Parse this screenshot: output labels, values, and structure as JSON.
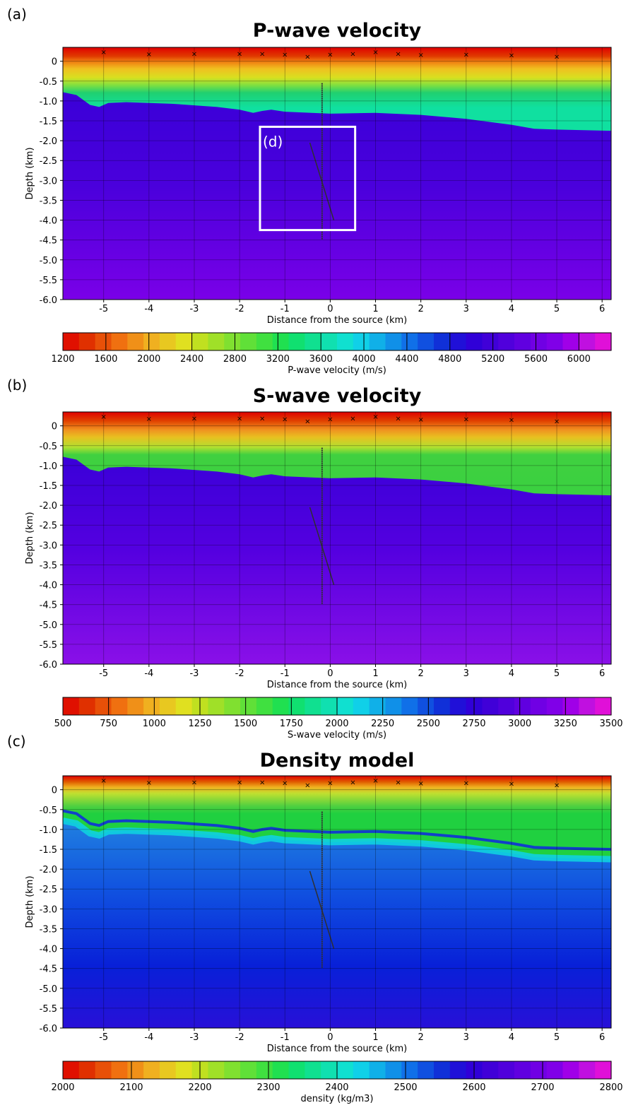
{
  "panels": [
    {
      "letter": "(a)",
      "title": "P-wave velocity",
      "box_label": "(d)",
      "ylabel": "Depth (km)",
      "xlabel": "Distance from the source (km)",
      "colorbar": {
        "label": "P-wave velocity (m/s)",
        "ticks": [
          "1200",
          "1600",
          "2000",
          "2400",
          "2800",
          "3200",
          "3600",
          "4000",
          "4400",
          "4800",
          "5200",
          "5600",
          "6000"
        ],
        "vmin": 1200,
        "vmax": 6300,
        "tick_start": 1200,
        "tick_step": 400
      }
    },
    {
      "letter": "(b)",
      "title": "S-wave velocity",
      "ylabel": "Depth (km)",
      "xlabel": "Distance from the source (km)",
      "colorbar": {
        "label": "S-wave velocity (m/s)",
        "ticks": [
          "500",
          "750",
          "1000",
          "1250",
          "1500",
          "1750",
          "2000",
          "2250",
          "2500",
          "2750",
          "3000",
          "3250",
          "3500"
        ],
        "vmin": 500,
        "vmax": 3500,
        "tick_start": 500,
        "tick_step": 250
      }
    },
    {
      "letter": "(c)",
      "title": "Density model",
      "ylabel": "Depth (km)",
      "xlabel": "Distance from the source (km)",
      "colorbar": {
        "label": "density (kg/m3)",
        "ticks": [
          "2000",
          "2100",
          "2200",
          "2300",
          "2400",
          "2500",
          "2600",
          "2700",
          "2800"
        ],
        "vmin": 2000,
        "vmax": 2800,
        "tick_start": 2000,
        "tick_step": 100
      }
    }
  ],
  "axes": {
    "x_ticks": [
      "-5",
      "-4",
      "-3",
      "-2",
      "-1",
      "0",
      "1",
      "2",
      "3",
      "4",
      "5",
      "6"
    ],
    "y_ticks": [
      "0",
      "-0.5",
      "-1.0",
      "-1.5",
      "-2.0",
      "-2.5",
      "-3.0",
      "-3.5",
      "-4.0",
      "-4.5",
      "-5.0",
      "-5.5",
      "-6.0"
    ]
  },
  "chart_data": [
    {
      "type": "heatmap",
      "title": "P-wave velocity",
      "xlabel": "Distance from the source (km)",
      "ylabel": "Depth (km)",
      "xlim": [
        -5.9,
        6.2
      ],
      "ylim": [
        -6.0,
        0.35
      ],
      "colorbar_label": "P-wave velocity (m/s)",
      "colorbar_range": [
        1200,
        6300
      ],
      "zoom_box": {
        "label": "(d)",
        "x": [
          -1.55,
          0.55
        ],
        "y": [
          -4.25,
          -1.65
        ]
      },
      "layer_interface_depth": {
        "x": [
          -5.9,
          -5.6,
          -5.3,
          -5.1,
          -4.9,
          -4.5,
          -3.5,
          -2.5,
          -2.0,
          -1.7,
          -1.5,
          -1.3,
          -1.0,
          0,
          1,
          2,
          3,
          4,
          4.5,
          5,
          6.2
        ],
        "y": [
          -0.78,
          -0.85,
          -1.1,
          -1.15,
          -1.05,
          -1.03,
          -1.07,
          -1.15,
          -1.22,
          -1.3,
          -1.25,
          -1.22,
          -1.27,
          -1.32,
          -1.3,
          -1.35,
          -1.45,
          -1.6,
          -1.7,
          -1.72,
          -1.75
        ]
      },
      "surface_stations_x": [
        -5,
        -4,
        -3,
        -2,
        -1.5,
        -1,
        -0.5,
        0,
        0.5,
        1,
        1.5,
        2,
        3,
        4,
        5
      ],
      "surface_stations_y": [
        0.24,
        0.19,
        0.2,
        0.2,
        0.2,
        0.18,
        0.13,
        0.18,
        0.2,
        0.24,
        0.2,
        0.17,
        0.18,
        0.16,
        0.13
      ]
    },
    {
      "type": "heatmap",
      "title": "S-wave velocity",
      "xlabel": "Distance from the source (km)",
      "ylabel": "Depth (km)",
      "xlim": [
        -5.9,
        6.2
      ],
      "ylim": [
        -6.0,
        0.35
      ],
      "colorbar_label": "S-wave velocity (m/s)",
      "colorbar_range": [
        500,
        3500
      ]
    },
    {
      "type": "heatmap",
      "title": "Density model",
      "xlabel": "Distance from the source (km)",
      "ylabel": "Depth (km)",
      "xlim": [
        -5.9,
        6.2
      ],
      "ylim": [
        -6.0,
        0.35
      ],
      "colorbar_label": "density (kg/m3)",
      "colorbar_range": [
        2000,
        2800
      ]
    }
  ]
}
